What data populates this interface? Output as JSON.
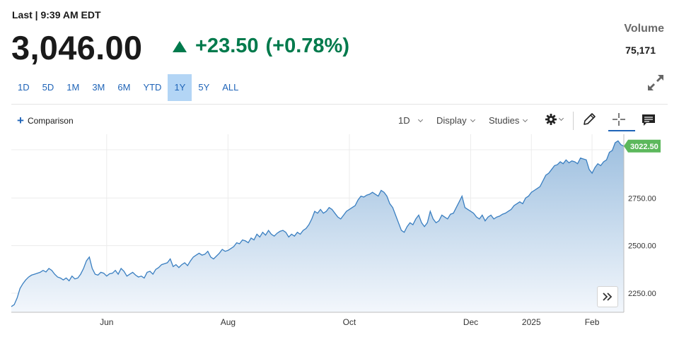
{
  "header": {
    "last_time": "Last | 9:39 AM EDT",
    "price": "3,046.00",
    "change": "+23.50",
    "change_pct": "(+0.78%)",
    "volume_label": "Volume",
    "volume_value": "75,171"
  },
  "range_tabs": [
    {
      "label": "1D",
      "active": false
    },
    {
      "label": "5D",
      "active": false
    },
    {
      "label": "1M",
      "active": false
    },
    {
      "label": "3M",
      "active": false
    },
    {
      "label": "6M",
      "active": false
    },
    {
      "label": "YTD",
      "active": false
    },
    {
      "label": "1Y",
      "active": true
    },
    {
      "label": "5Y",
      "active": false
    },
    {
      "label": "ALL",
      "active": false
    }
  ],
  "toolbar": {
    "comparison": "Comparison",
    "interval": "1D",
    "display": "Display",
    "studies": "Studies",
    "icons": [
      "gear-icon",
      "pencil-icon",
      "crosshair-icon",
      "comment-icon"
    ]
  },
  "colors": {
    "line": "#3a7fc1",
    "fill_top": "#9dbfdf",
    "fill_bottom": "#f3f7fc",
    "gain": "#007a4c",
    "last_badge": "#5cb85c",
    "active_tab": "#b3d5f5",
    "link": "#1f64b8"
  },
  "chart_data": {
    "type": "area",
    "y_ticks": [
      "2250.00",
      "2500.00",
      "2750.00"
    ],
    "y_tick_values": [
      2250,
      2500,
      2750
    ],
    "ylim": [
      2150,
      3070
    ],
    "x_ticks": [
      {
        "label": "Jun",
        "index": 33
      },
      {
        "label": "Aug",
        "index": 75
      },
      {
        "label": "Oct",
        "index": 117
      },
      {
        "label": "Dec",
        "index": 159
      },
      {
        "label": "2025",
        "index": 180
      },
      {
        "label": "Feb",
        "index": 201
      }
    ],
    "last_label": "3022.50",
    "last_value": 3022.5,
    "grid": true,
    "values": [
      2180,
      2190,
      2225,
      2275,
      2300,
      2320,
      2335,
      2345,
      2350,
      2355,
      2360,
      2370,
      2362,
      2380,
      2370,
      2350,
      2335,
      2330,
      2320,
      2330,
      2315,
      2340,
      2325,
      2330,
      2350,
      2380,
      2420,
      2440,
      2380,
      2350,
      2345,
      2360,
      2355,
      2340,
      2352,
      2355,
      2370,
      2350,
      2380,
      2365,
      2340,
      2350,
      2360,
      2345,
      2335,
      2340,
      2330,
      2360,
      2365,
      2350,
      2375,
      2385,
      2400,
      2405,
      2410,
      2430,
      2390,
      2400,
      2385,
      2400,
      2410,
      2395,
      2420,
      2440,
      2450,
      2460,
      2450,
      2455,
      2470,
      2440,
      2430,
      2445,
      2460,
      2480,
      2470,
      2475,
      2485,
      2495,
      2515,
      2510,
      2530,
      2525,
      2515,
      2540,
      2530,
      2560,
      2545,
      2570,
      2555,
      2580,
      2560,
      2550,
      2565,
      2575,
      2580,
      2570,
      2545,
      2560,
      2550,
      2570,
      2560,
      2580,
      2590,
      2610,
      2640,
      2680,
      2670,
      2690,
      2670,
      2680,
      2700,
      2690,
      2670,
      2650,
      2640,
      2660,
      2680,
      2690,
      2700,
      2710,
      2740,
      2760,
      2755,
      2765,
      2770,
      2780,
      2770,
      2760,
      2790,
      2780,
      2760,
      2720,
      2700,
      2660,
      2620,
      2580,
      2570,
      2600,
      2620,
      2610,
      2640,
      2660,
      2620,
      2600,
      2620,
      2680,
      2640,
      2620,
      2630,
      2660,
      2650,
      2640,
      2665,
      2670,
      2700,
      2730,
      2760,
      2700,
      2690,
      2680,
      2670,
      2650,
      2640,
      2660,
      2630,
      2650,
      2660,
      2640,
      2650,
      2655,
      2665,
      2670,
      2680,
      2690,
      2710,
      2720,
      2730,
      2720,
      2750,
      2760,
      2780,
      2790,
      2800,
      2810,
      2840,
      2870,
      2880,
      2900,
      2920,
      2925,
      2940,
      2930,
      2950,
      2935,
      2945,
      2940,
      2930,
      2960,
      2955,
      2950,
      2900,
      2880,
      2910,
      2930,
      2920,
      2940,
      2950,
      2990,
      3000,
      3040,
      3050,
      3030,
      3022.5
    ]
  }
}
